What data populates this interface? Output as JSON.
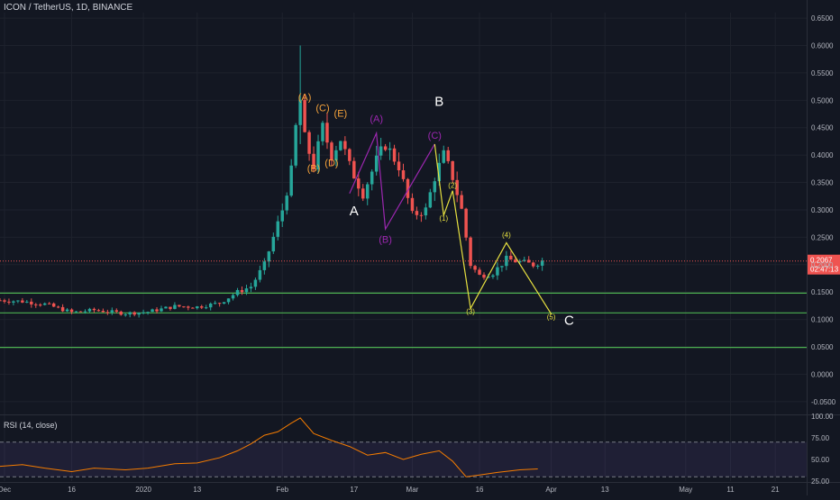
{
  "chart_title": "ICON / TetherUS, 1D, BINANCE",
  "rsi_title": "RSI (14, close)",
  "colors": {
    "background": "#131722",
    "grid": "#1e222d",
    "up": "#26a69a",
    "down": "#ef5350",
    "support_line": "#4caf50",
    "price_line": "#ef5350",
    "wave_orange": "#f6a33b",
    "wave_purple": "#9c27b0",
    "wave_yellow": "#e6e040",
    "rsi_line": "#f57c00",
    "rsi_band": "#7e57c2"
  },
  "chart_data": [
    {
      "type": "candlestick",
      "ylim": [
        -0.07,
        0.66
      ],
      "price_ticks": [
        "0.6500",
        "0.6000",
        "0.5500",
        "0.5000",
        "0.4500",
        "0.4000",
        "0.3500",
        "0.3000",
        "0.2500",
        "0.2000",
        "0.1500",
        "0.1000",
        "0.0500",
        "0.0000",
        "-0.0500"
      ],
      "price_tick_values": [
        0.65,
        0.6,
        0.55,
        0.5,
        0.45,
        0.4,
        0.35,
        0.3,
        0.25,
        0.2,
        0.15,
        0.1,
        0.05,
        0,
        -0.05
      ],
      "x_ticks": [
        {
          "label": "Dec",
          "date": "2019-12-01"
        },
        {
          "label": "16",
          "date": "2019-12-16"
        },
        {
          "label": "2020",
          "date": "2020-01-01"
        },
        {
          "label": "13",
          "date": "2020-01-13"
        },
        {
          "label": "Feb",
          "date": "2020-02-01"
        },
        {
          "label": "17",
          "date": "2020-02-17"
        },
        {
          "label": "Mar",
          "date": "2020-03-01"
        },
        {
          "label": "16",
          "date": "2020-03-16"
        },
        {
          "label": "Apr",
          "date": "2020-04-01"
        },
        {
          "label": "13",
          "date": "2020-04-13"
        },
        {
          "label": "May",
          "date": "2020-05-01"
        },
        {
          "label": "11",
          "date": "2020-05-11"
        },
        {
          "label": "21",
          "date": "2020-05-21"
        }
      ],
      "x_range": [
        "2019-11-30",
        "2020-05-28"
      ],
      "current_price": {
        "value": 0.2067,
        "label": "0.2067",
        "countdown": "02:47:13"
      },
      "support_levels": [
        0.148,
        0.112,
        0.049
      ],
      "price_path": [
        [
          "2019-11-30",
          0.135
        ],
        [
          "2019-12-05",
          0.133
        ],
        [
          "2019-12-10",
          0.128
        ],
        [
          "2019-12-16",
          0.113
        ],
        [
          "2019-12-21",
          0.117
        ],
        [
          "2019-12-28",
          0.111
        ],
        [
          "2020-01-02",
          0.114
        ],
        [
          "2020-01-08",
          0.124
        ],
        [
          "2020-01-13",
          0.123
        ],
        [
          "2020-01-18",
          0.13
        ],
        [
          "2020-01-22",
          0.15
        ],
        [
          "2020-01-25",
          0.16
        ],
        [
          "2020-01-28",
          0.2
        ],
        [
          "2020-01-30",
          0.25
        ],
        [
          "2020-02-01",
          0.3
        ],
        [
          "2020-02-03",
          0.37
        ],
        [
          "2020-02-04",
          0.45
        ],
        [
          "2020-02-05",
          0.5
        ],
        [
          "2020-02-06",
          0.43
        ],
        [
          "2020-02-08",
          0.38
        ],
        [
          "2020-02-10",
          0.45
        ],
        [
          "2020-02-12",
          0.4
        ],
        [
          "2020-02-14",
          0.43
        ],
        [
          "2020-02-16",
          0.38
        ],
        [
          "2020-02-19",
          0.33
        ],
        [
          "2020-02-22",
          0.39
        ],
        [
          "2020-02-24",
          0.42
        ],
        [
          "2020-02-27",
          0.38
        ],
        [
          "2020-03-01",
          0.29
        ],
        [
          "2020-03-04",
          0.3
        ],
        [
          "2020-03-06",
          0.36
        ],
        [
          "2020-03-08",
          0.4
        ],
        [
          "2020-03-10",
          0.36
        ],
        [
          "2020-03-12",
          0.3
        ],
        [
          "2020-03-14",
          0.2
        ],
        [
          "2020-03-16",
          0.18
        ],
        [
          "2020-03-19",
          0.185
        ],
        [
          "2020-03-22",
          0.21
        ],
        [
          "2020-03-25",
          0.205
        ],
        [
          "2020-03-28",
          0.2
        ],
        [
          "2020-03-30",
          0.207
        ]
      ],
      "annotations": [
        {
          "text": "(A)",
          "group": "orange",
          "date": "2020-02-06",
          "price": 0.5
        },
        {
          "text": "(B)",
          "group": "orange",
          "date": "2020-02-08",
          "price": 0.37
        },
        {
          "text": "(C)",
          "group": "orange",
          "date": "2020-02-10",
          "price": 0.48
        },
        {
          "text": "(D)",
          "group": "orange",
          "date": "2020-02-12",
          "price": 0.38
        },
        {
          "text": "(E)",
          "group": "orange",
          "date": "2020-02-14",
          "price": 0.47
        },
        {
          "text": "(A)",
          "group": "purple",
          "date": "2020-02-22",
          "price": 0.46
        },
        {
          "text": "(B)",
          "group": "purple",
          "date": "2020-02-24",
          "price": 0.24
        },
        {
          "text": "(C)",
          "group": "purple",
          "date": "2020-03-06",
          "price": 0.43
        },
        {
          "text": "(1)",
          "group": "yellow",
          "date": "2020-03-08",
          "price": 0.28
        },
        {
          "text": "(2)",
          "group": "yellow",
          "date": "2020-03-10",
          "price": 0.34
        },
        {
          "text": "(3)",
          "group": "yellow",
          "date": "2020-03-14",
          "price": 0.11
        },
        {
          "text": "(4)",
          "group": "yellow",
          "date": "2020-03-22",
          "price": 0.25
        },
        {
          "text": "(5)",
          "group": "yellow",
          "date": "2020-04-01",
          "price": 0.1
        },
        {
          "text": "A",
          "group": "white",
          "date": "2020-02-17",
          "price": 0.29
        },
        {
          "text": "B",
          "group": "white",
          "date": "2020-03-07",
          "price": 0.49
        },
        {
          "text": "C",
          "group": "white",
          "date": "2020-04-05",
          "price": 0.09
        }
      ],
      "wave_lines": [
        {
          "group": "purple",
          "points": [
            [
              "2020-02-16",
              0.33
            ],
            [
              "2020-02-22",
              0.44
            ],
            [
              "2020-02-24",
              0.265
            ],
            [
              "2020-03-06",
              0.42
            ]
          ]
        },
        {
          "group": "yellow",
          "points": [
            [
              "2020-03-06",
              0.42
            ],
            [
              "2020-03-08",
              0.29
            ],
            [
              "2020-03-10",
              0.335
            ],
            [
              "2020-03-14",
              0.12
            ],
            [
              "2020-03-22",
              0.24
            ],
            [
              "2020-04-01",
              0.11
            ]
          ]
        }
      ]
    },
    {
      "type": "line",
      "name": "RSI (14, close)",
      "ylim": [
        25,
        100
      ],
      "ticks": [
        "100.00",
        "75.00",
        "50.00",
        "25.00"
      ],
      "tick_values": [
        100,
        75,
        50,
        25
      ],
      "band": [
        30,
        70
      ],
      "points": [
        [
          "2019-11-30",
          42
        ],
        [
          "2019-12-05",
          44
        ],
        [
          "2019-12-10",
          40
        ],
        [
          "2019-12-16",
          36
        ],
        [
          "2019-12-21",
          40
        ],
        [
          "2019-12-28",
          38
        ],
        [
          "2020-01-02",
          40
        ],
        [
          "2020-01-08",
          45
        ],
        [
          "2020-01-13",
          46
        ],
        [
          "2020-01-18",
          52
        ],
        [
          "2020-01-22",
          60
        ],
        [
          "2020-01-25",
          68
        ],
        [
          "2020-01-28",
          78
        ],
        [
          "2020-01-31",
          82
        ],
        [
          "2020-02-03",
          92
        ],
        [
          "2020-02-05",
          98
        ],
        [
          "2020-02-08",
          80
        ],
        [
          "2020-02-12",
          72
        ],
        [
          "2020-02-16",
          65
        ],
        [
          "2020-02-20",
          55
        ],
        [
          "2020-02-24",
          58
        ],
        [
          "2020-02-28",
          50
        ],
        [
          "2020-03-03",
          56
        ],
        [
          "2020-03-07",
          60
        ],
        [
          "2020-03-10",
          48
        ],
        [
          "2020-03-13",
          30
        ],
        [
          "2020-03-16",
          32
        ],
        [
          "2020-03-20",
          35
        ],
        [
          "2020-03-25",
          38
        ],
        [
          "2020-03-29",
          39
        ]
      ]
    }
  ]
}
